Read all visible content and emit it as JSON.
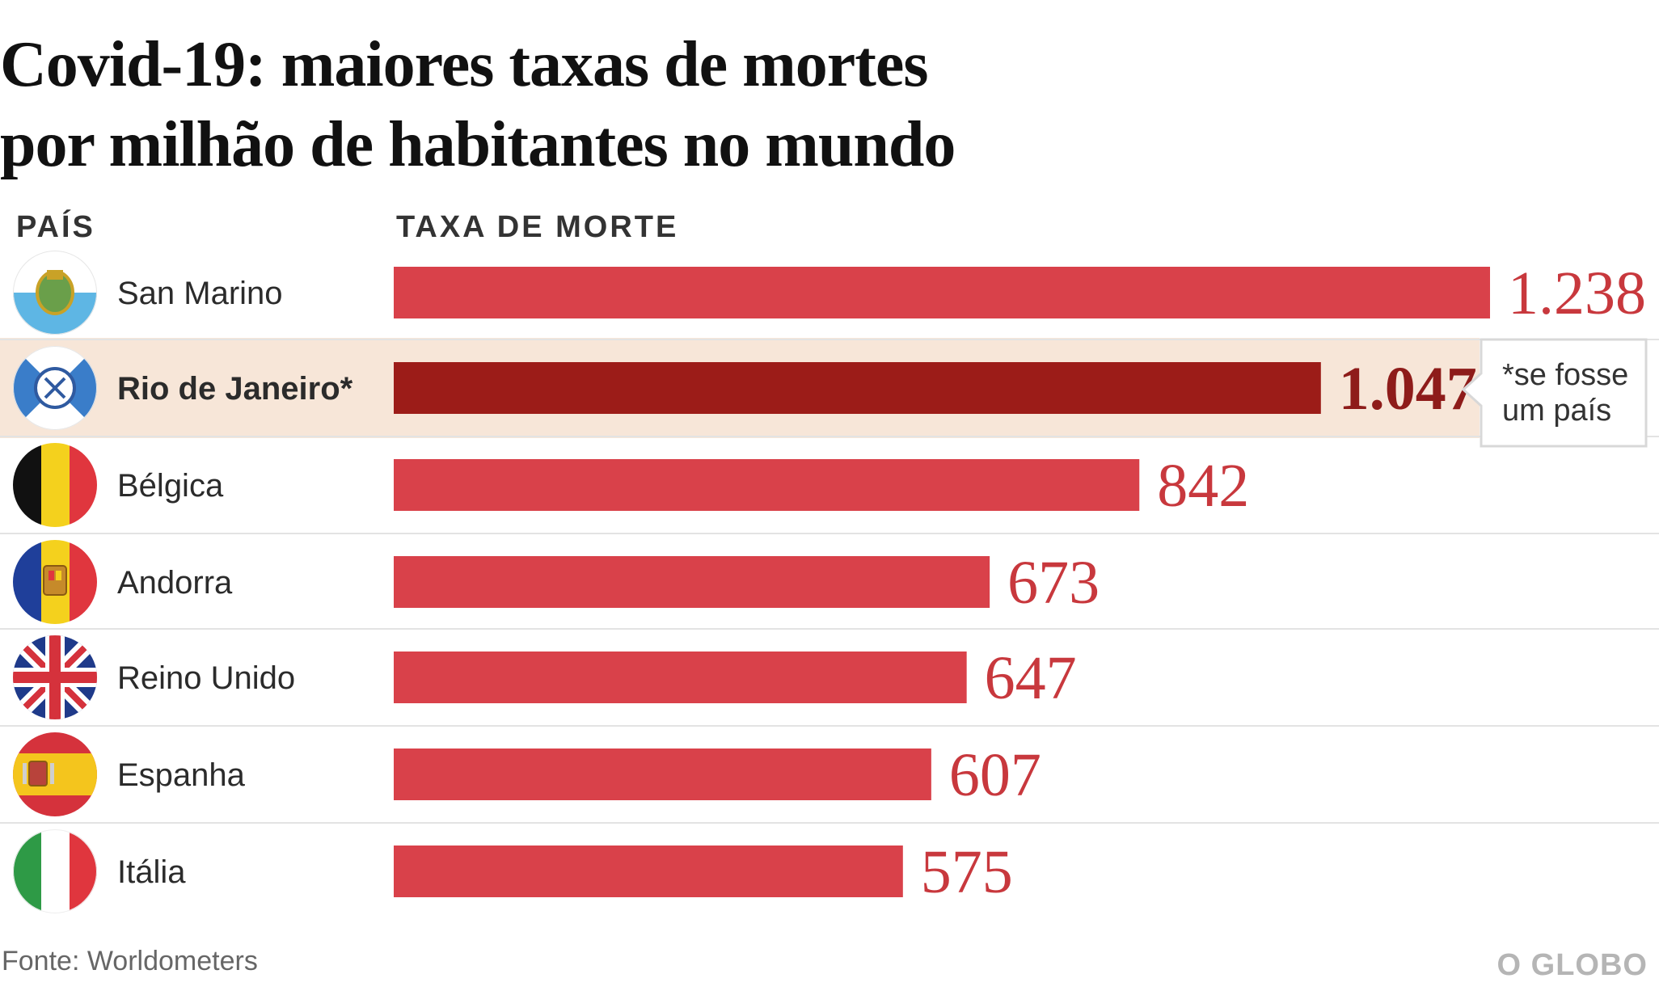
{
  "colors": {
    "bar": "#d9414a",
    "bar_highlight": "#9c1c18",
    "row_highlight": "#f7e6d8",
    "value": "#c8383d",
    "value_highlight": "#8e1c1a"
  },
  "chart_data": {
    "type": "bar",
    "orientation": "horizontal",
    "title_lines": [
      "Covid-19: maiores taxas de mortes",
      "por milhão de habitantes no mundo"
    ],
    "column_headers": {
      "country": "PAÍS",
      "value": "TAXA DE MORTE"
    },
    "xlim": [
      0,
      1238
    ],
    "grid": false,
    "legend": "none",
    "rows": [
      {
        "country": "San Marino",
        "value": 1238,
        "label": "1.238",
        "highlight": false,
        "icon": "san-marino-flag-icon"
      },
      {
        "country": "Rio de Janeiro*",
        "value": 1047,
        "label": "1.047",
        "highlight": true,
        "icon": "rio-de-janeiro-flag-icon"
      },
      {
        "country": "Bélgica",
        "value": 842,
        "label": "842",
        "highlight": false,
        "icon": "belgium-flag-icon"
      },
      {
        "country": "Andorra",
        "value": 673,
        "label": "673",
        "highlight": false,
        "icon": "andorra-flag-icon"
      },
      {
        "country": "Reino Unido",
        "value": 647,
        "label": "647",
        "highlight": false,
        "icon": "uk-flag-icon"
      },
      {
        "country": "Espanha",
        "value": 607,
        "label": "607",
        "highlight": false,
        "icon": "spain-flag-icon"
      },
      {
        "country": "Itália",
        "value": 575,
        "label": "575",
        "highlight": false,
        "icon": "italy-flag-icon"
      }
    ],
    "annotation": {
      "lines": [
        "*se fosse",
        "um país"
      ]
    },
    "source": "Fonte: Worldometers",
    "brand": "O GLOBO"
  }
}
